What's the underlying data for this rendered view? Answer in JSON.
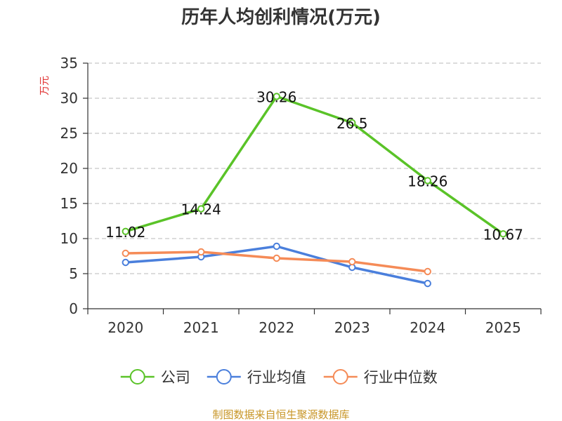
{
  "chart_data": {
    "type": "line",
    "title": "历年人均创利情况(万元)",
    "ylabel": "万元",
    "xlabel": "",
    "categories": [
      "2020",
      "2021",
      "2022",
      "2023",
      "2024",
      "2025"
    ],
    "ylim": [
      0,
      35
    ],
    "yticks": [
      0,
      5,
      10,
      15,
      20,
      25,
      30,
      35
    ],
    "grid": true,
    "legend_position": "bottom",
    "series": [
      {
        "name": "公司",
        "color": "#5ac328",
        "values": [
          11.02,
          14.24,
          30.26,
          26.5,
          18.26,
          10.67
        ],
        "labels": [
          "11.02",
          "14.24",
          "30.26",
          "26.5",
          "18.26",
          "10.67"
        ]
      },
      {
        "name": "行业均值",
        "color": "#4a7fdc",
        "values": [
          6.6,
          7.4,
          8.9,
          5.9,
          3.6,
          null
        ]
      },
      {
        "name": "行业中位数",
        "color": "#f58b57",
        "values": [
          7.9,
          8.1,
          7.2,
          6.7,
          5.3,
          null
        ]
      }
    ],
    "source": "制图数据来自恒生聚源数据库"
  }
}
